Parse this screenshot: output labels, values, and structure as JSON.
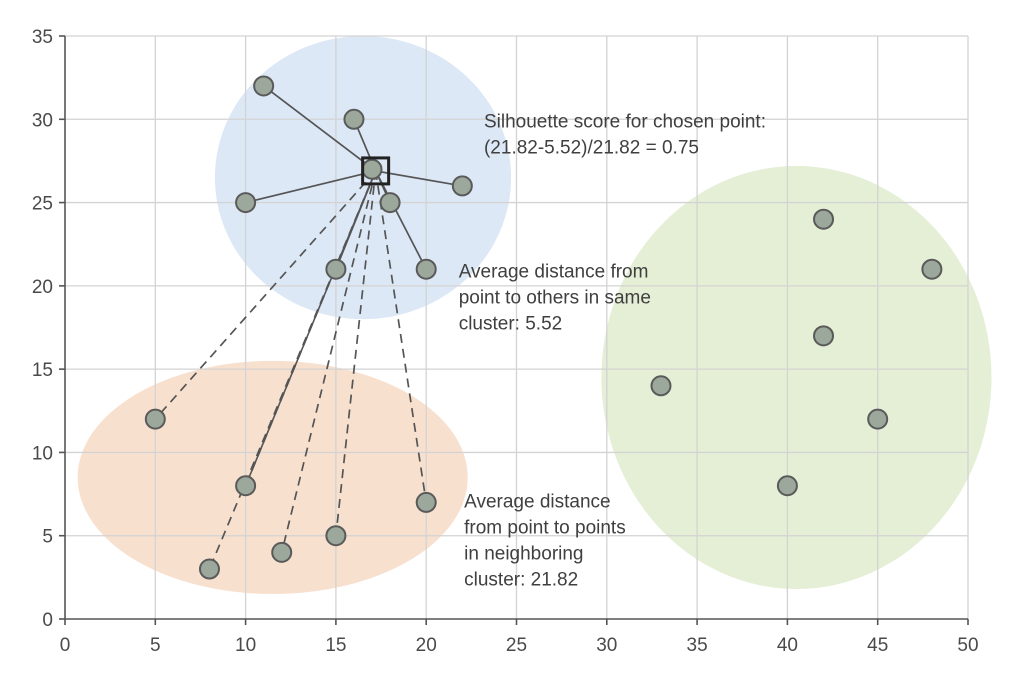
{
  "chart_data": {
    "type": "scatter",
    "title": "",
    "xlabel": "",
    "ylabel": "",
    "xlim": [
      0,
      50
    ],
    "ylim": [
      0,
      35
    ],
    "x_ticks": [
      0,
      5,
      10,
      15,
      20,
      25,
      30,
      35,
      40,
      45,
      50
    ],
    "y_ticks": [
      0,
      5,
      10,
      15,
      20,
      25,
      30,
      35
    ],
    "grid": true,
    "colors": {
      "blue_cluster": "#dce8f6",
      "orange_cluster": "#f8e0cf",
      "green_cluster": "#e4efd6",
      "point_fill": "#9ba89b",
      "point_stroke": "#5a5a5a",
      "line": "#555555"
    },
    "clusters": [
      {
        "id": "blue",
        "center": [
          16.5,
          26.5
        ],
        "radius_x": 8.2,
        "radius_y": 8.5
      },
      {
        "id": "orange",
        "center": [
          11.5,
          8.5
        ],
        "radius_x": 10.8,
        "radius_y": 7.0
      },
      {
        "id": "green",
        "center": [
          40.5,
          14.5
        ],
        "radius_x": 10.8,
        "radius_y": 12.7
      }
    ],
    "chosen_point": {
      "x": 17.2,
      "y": 26.9
    },
    "series": [
      {
        "cluster": "blue",
        "x": [
          11,
          16,
          22,
          10,
          18,
          15,
          20,
          17
        ],
        "y": [
          32,
          30,
          26,
          25,
          25,
          21,
          21,
          27
        ]
      },
      {
        "cluster": "orange",
        "x": [
          5,
          10,
          8,
          12,
          15,
          20
        ],
        "y": [
          12,
          8,
          3,
          4,
          5,
          7
        ]
      },
      {
        "cluster": "green",
        "x": [
          42,
          48,
          42,
          33,
          45,
          40
        ],
        "y": [
          24,
          21,
          17,
          14,
          12,
          8
        ]
      }
    ],
    "annotations": [
      {
        "lines": [
          "Silhouette score for chosen point:",
          "(21.82-5.52)/21.82 = 0.75"
        ],
        "at": [
          23.2,
          29.5
        ]
      },
      {
        "lines": [
          "Average distance from",
          "point to others in same",
          "cluster: 5.52"
        ],
        "at": [
          21.8,
          20.5
        ]
      },
      {
        "lines": [
          "Average distance",
          "from point to points",
          "in neighboring",
          "cluster: 21.82"
        ],
        "at": [
          22.1,
          6.7
        ]
      }
    ]
  }
}
